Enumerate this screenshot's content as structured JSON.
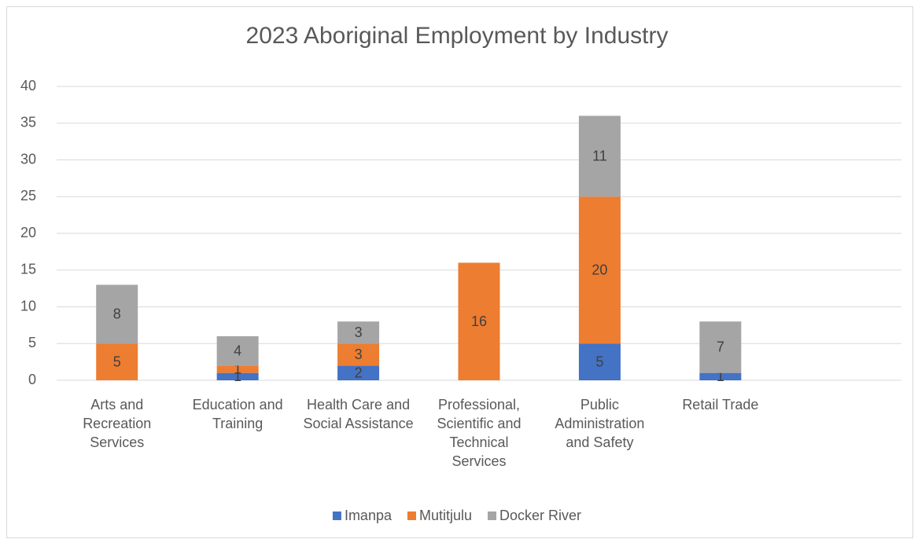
{
  "chart_data": {
    "type": "bar",
    "stacked": true,
    "title": "2023 Aboriginal Employment by Industry",
    "categories": [
      "Arts and Recreation Services",
      "Education and Training",
      "Health Care and Social Assistance",
      "Professional, Scientific and Technical Services",
      "Public Administration and Safety",
      "Retail Trade",
      null
    ],
    "series": [
      {
        "name": "Imanpa",
        "color": "#4472c4",
        "values": [
          null,
          1,
          2,
          null,
          5,
          1,
          null
        ]
      },
      {
        "name": "Mutitjulu",
        "color": "#ed7d31",
        "values": [
          5,
          1,
          3,
          16,
          20,
          null,
          null
        ]
      },
      {
        "name": "Docker River",
        "color": "#a5a5a5",
        "values": [
          8,
          4,
          3,
          null,
          11,
          7,
          null
        ]
      }
    ],
    "ylim": [
      0,
      40
    ],
    "yticks": [
      0,
      5,
      10,
      15,
      20,
      25,
      30,
      35,
      40
    ],
    "grid": true,
    "legend": "bottom"
  }
}
